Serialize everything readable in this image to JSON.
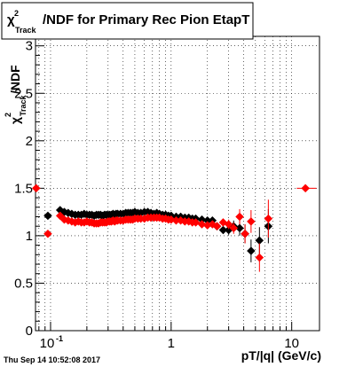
{
  "chart_data": {
    "type": "scatter",
    "title_symbol": "χ",
    "title_sup": "2",
    "title_sub": "Track",
    "title_rest": "/NDF for Primary Rec Pion EtapT",
    "xlabel": "pT/|q| (GeV/c)",
    "ylabel_symbol": "χ",
    "ylabel_sup": "2",
    "ylabel_sub": "Track",
    "ylabel_rest": "/NDF",
    "x_scale": "log",
    "xlim": [
      0.075,
      17
    ],
    "ylim": [
      0,
      3.1
    ],
    "x_ticks": [
      {
        "value": 0.1,
        "label": "10",
        "sup": "-1"
      },
      {
        "value": 1,
        "label": "1",
        "sup": ""
      },
      {
        "value": 10,
        "label": "10",
        "sup": ""
      }
    ],
    "y_ticks": [
      {
        "value": 0,
        "label": "0"
      },
      {
        "value": 0.5,
        "label": "0.5"
      },
      {
        "value": 1,
        "label": "1"
      },
      {
        "value": 1.5,
        "label": "1.5"
      },
      {
        "value": 2,
        "label": "2"
      },
      {
        "value": 2.5,
        "label": "2.5"
      },
      {
        "value": 3,
        "label": "3"
      }
    ],
    "grid": true,
    "timestamp": "Thu Sep 14 10:52:08 2017",
    "series": [
      {
        "color": "#000000",
        "points": [
          {
            "x": 0.095,
            "y": 1.21,
            "ex": [
              0.09,
              0.1
            ],
            "ey": 0.02
          },
          {
            "x": 0.12,
            "y": 1.27
          },
          {
            "x": 0.13,
            "y": 1.25
          },
          {
            "x": 0.14,
            "y": 1.24
          },
          {
            "x": 0.15,
            "y": 1.23
          },
          {
            "x": 0.16,
            "y": 1.22
          },
          {
            "x": 0.17,
            "y": 1.22
          },
          {
            "x": 0.18,
            "y": 1.22
          },
          {
            "x": 0.19,
            "y": 1.23
          },
          {
            "x": 0.2,
            "y": 1.22
          },
          {
            "x": 0.21,
            "y": 1.22
          },
          {
            "x": 0.22,
            "y": 1.22
          },
          {
            "x": 0.23,
            "y": 1.21
          },
          {
            "x": 0.24,
            "y": 1.22
          },
          {
            "x": 0.25,
            "y": 1.22
          },
          {
            "x": 0.26,
            "y": 1.22
          },
          {
            "x": 0.27,
            "y": 1.21
          },
          {
            "x": 0.28,
            "y": 1.22
          },
          {
            "x": 0.29,
            "y": 1.22
          },
          {
            "x": 0.3,
            "y": 1.22
          },
          {
            "x": 0.31,
            "y": 1.22
          },
          {
            "x": 0.32,
            "y": 1.22
          },
          {
            "x": 0.33,
            "y": 1.23
          },
          {
            "x": 0.34,
            "y": 1.22
          },
          {
            "x": 0.35,
            "y": 1.23
          },
          {
            "x": 0.36,
            "y": 1.23
          },
          {
            "x": 0.38,
            "y": 1.23
          },
          {
            "x": 0.4,
            "y": 1.23
          },
          {
            "x": 0.42,
            "y": 1.24
          },
          {
            "x": 0.44,
            "y": 1.24
          },
          {
            "x": 0.46,
            "y": 1.24
          },
          {
            "x": 0.48,
            "y": 1.24
          },
          {
            "x": 0.5,
            "y": 1.25
          },
          {
            "x": 0.53,
            "y": 1.24
          },
          {
            "x": 0.56,
            "y": 1.24
          },
          {
            "x": 0.6,
            "y": 1.25
          },
          {
            "x": 0.64,
            "y": 1.25
          },
          {
            "x": 0.68,
            "y": 1.24
          },
          {
            "x": 0.72,
            "y": 1.23
          },
          {
            "x": 0.76,
            "y": 1.24
          },
          {
            "x": 0.8,
            "y": 1.23
          },
          {
            "x": 0.85,
            "y": 1.22
          },
          {
            "x": 0.9,
            "y": 1.22
          },
          {
            "x": 0.95,
            "y": 1.21
          },
          {
            "x": 1.0,
            "y": 1.21
          },
          {
            "x": 1.1,
            "y": 1.2
          },
          {
            "x": 1.2,
            "y": 1.2
          },
          {
            "x": 1.3,
            "y": 1.19
          },
          {
            "x": 1.4,
            "y": 1.19
          },
          {
            "x": 1.5,
            "y": 1.18
          },
          {
            "x": 1.6,
            "y": 1.18
          },
          {
            "x": 1.8,
            "y": 1.17
          },
          {
            "x": 2.0,
            "y": 1.16
          },
          {
            "x": 2.2,
            "y": 1.16
          },
          {
            "x": 2.4,
            "y": 1.1,
            "ey": 0.03
          },
          {
            "x": 2.7,
            "y": 1.06,
            "ey": 0.04
          },
          {
            "x": 3.0,
            "y": 1.06,
            "ey": 0.05
          },
          {
            "x": 3.3,
            "y": 1.1,
            "ey": 0.06
          },
          {
            "x": 3.7,
            "y": 1.08,
            "ey": 0.08
          },
          {
            "x": 4.1,
            "y": 1.02,
            "ey": 0.1
          },
          {
            "x": 4.6,
            "y": 0.84,
            "ey": 0.12
          },
          {
            "x": 5.4,
            "y": 0.95,
            "ey": 0.14
          },
          {
            "x": 6.4,
            "y": 1.1,
            "ey": 0.18
          }
        ]
      },
      {
        "color": "#ff0000",
        "points": [
          {
            "x": 0.076,
            "y": 1.5,
            "ex": [
              0.075,
              0.082
            ]
          },
          {
            "x": 0.095,
            "y": 1.02,
            "ex": [
              0.09,
              0.1
            ],
            "ey": 0.02
          },
          {
            "x": 0.12,
            "y": 1.21
          },
          {
            "x": 0.13,
            "y": 1.17
          },
          {
            "x": 0.14,
            "y": 1.16
          },
          {
            "x": 0.15,
            "y": 1.15
          },
          {
            "x": 0.16,
            "y": 1.14
          },
          {
            "x": 0.17,
            "y": 1.15
          },
          {
            "x": 0.18,
            "y": 1.14
          },
          {
            "x": 0.19,
            "y": 1.14
          },
          {
            "x": 0.2,
            "y": 1.15
          },
          {
            "x": 0.21,
            "y": 1.14
          },
          {
            "x": 0.22,
            "y": 1.14
          },
          {
            "x": 0.23,
            "y": 1.13
          },
          {
            "x": 0.24,
            "y": 1.13
          },
          {
            "x": 0.25,
            "y": 1.13
          },
          {
            "x": 0.26,
            "y": 1.14
          },
          {
            "x": 0.27,
            "y": 1.14
          },
          {
            "x": 0.28,
            "y": 1.14
          },
          {
            "x": 0.29,
            "y": 1.14
          },
          {
            "x": 0.3,
            "y": 1.15
          },
          {
            "x": 0.31,
            "y": 1.15
          },
          {
            "x": 0.32,
            "y": 1.15
          },
          {
            "x": 0.33,
            "y": 1.16
          },
          {
            "x": 0.34,
            "y": 1.15
          },
          {
            "x": 0.35,
            "y": 1.16
          },
          {
            "x": 0.36,
            "y": 1.16
          },
          {
            "x": 0.38,
            "y": 1.16
          },
          {
            "x": 0.4,
            "y": 1.16
          },
          {
            "x": 0.42,
            "y": 1.17
          },
          {
            "x": 0.44,
            "y": 1.17
          },
          {
            "x": 0.46,
            "y": 1.17
          },
          {
            "x": 0.48,
            "y": 1.17
          },
          {
            "x": 0.5,
            "y": 1.18
          },
          {
            "x": 0.53,
            "y": 1.18
          },
          {
            "x": 0.56,
            "y": 1.18
          },
          {
            "x": 0.6,
            "y": 1.18
          },
          {
            "x": 0.64,
            "y": 1.19
          },
          {
            "x": 0.68,
            "y": 1.19
          },
          {
            "x": 0.72,
            "y": 1.19
          },
          {
            "x": 0.76,
            "y": 1.19
          },
          {
            "x": 0.8,
            "y": 1.19
          },
          {
            "x": 0.85,
            "y": 1.18
          },
          {
            "x": 0.9,
            "y": 1.18
          },
          {
            "x": 0.95,
            "y": 1.17
          },
          {
            "x": 1.0,
            "y": 1.17
          },
          {
            "x": 1.1,
            "y": 1.16
          },
          {
            "x": 1.2,
            "y": 1.16
          },
          {
            "x": 1.3,
            "y": 1.15
          },
          {
            "x": 1.4,
            "y": 1.15
          },
          {
            "x": 1.5,
            "y": 1.14
          },
          {
            "x": 1.6,
            "y": 1.14
          },
          {
            "x": 1.8,
            "y": 1.12
          },
          {
            "x": 2.0,
            "y": 1.11
          },
          {
            "x": 2.2,
            "y": 1.12
          },
          {
            "x": 2.4,
            "y": 1.1,
            "ey": 0.03
          },
          {
            "x": 2.7,
            "y": 1.14,
            "ey": 0.04
          },
          {
            "x": 3.0,
            "y": 1.12,
            "ey": 0.05
          },
          {
            "x": 3.3,
            "y": 1.08,
            "ey": 0.06
          },
          {
            "x": 3.7,
            "y": 1.2,
            "ey": 0.08
          },
          {
            "x": 4.1,
            "y": 1.02,
            "ey": 0.1
          },
          {
            "x": 4.6,
            "y": 1.15,
            "ey": 0.12
          },
          {
            "x": 5.4,
            "y": 0.77,
            "ey": 0.15
          },
          {
            "x": 6.4,
            "y": 1.18,
            "ey": 0.2
          },
          {
            "x": 13.0,
            "y": 1.5,
            "ex": [
              11.0,
              16.0
            ]
          }
        ]
      }
    ]
  }
}
